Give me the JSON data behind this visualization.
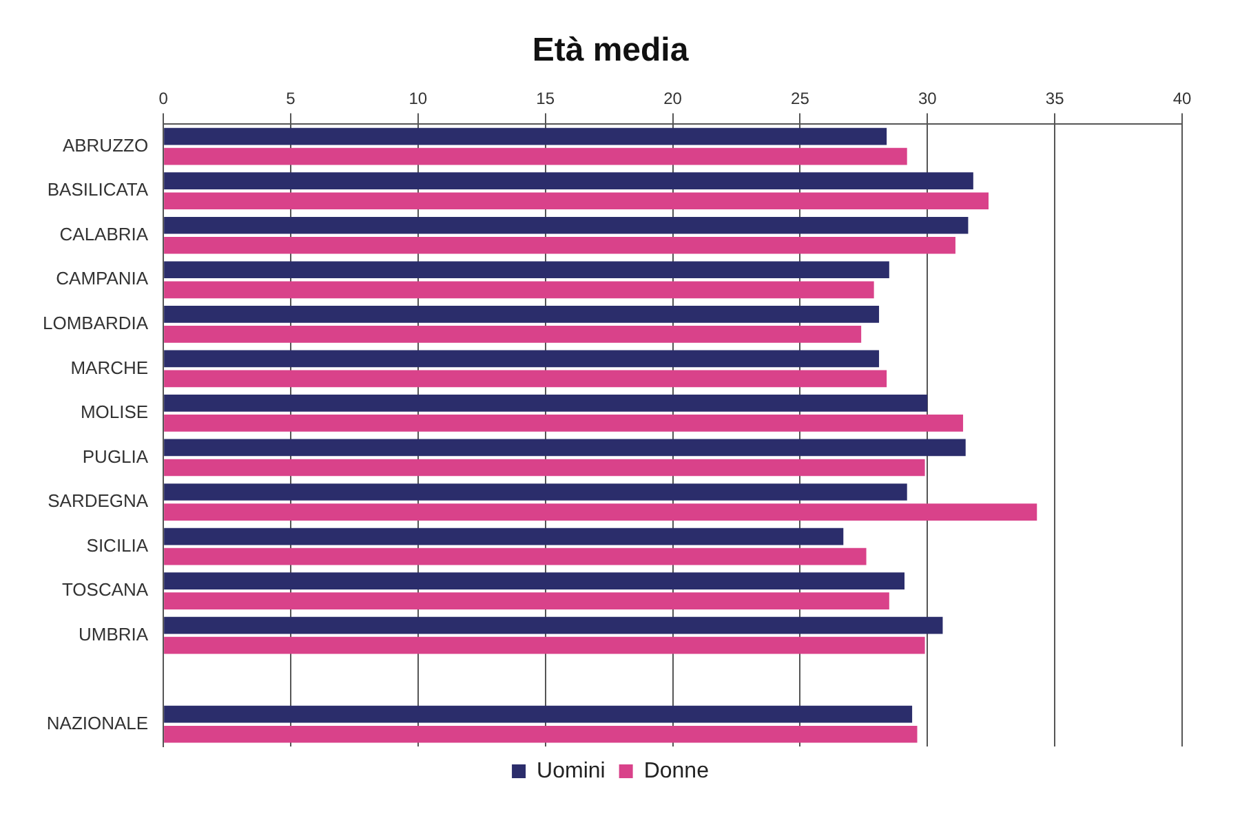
{
  "chart_data": {
    "type": "bar",
    "orientation": "horizontal",
    "title": "Età media",
    "categories": [
      "ABRUZZO",
      "BASILICATA",
      "CALABRIA",
      "CAMPANIA",
      "LOMBARDIA",
      "MARCHE",
      "MOLISE",
      "PUGLIA",
      "SARDEGNA",
      "SICILIA",
      "TOSCANA",
      "UMBRIA",
      null,
      "NAZIONALE"
    ],
    "series": [
      {
        "name": "Uomini",
        "color": "#2b2d6b",
        "values": [
          28.4,
          31.8,
          31.6,
          28.5,
          28.1,
          28.1,
          30.0,
          31.5,
          29.2,
          26.7,
          29.1,
          30.6,
          null,
          29.4
        ]
      },
      {
        "name": "Donne",
        "color": "#d9428a",
        "values": [
          29.2,
          32.4,
          31.1,
          27.9,
          27.4,
          28.4,
          31.4,
          29.9,
          34.3,
          27.6,
          28.5,
          29.9,
          null,
          29.6
        ]
      }
    ],
    "xlim": [
      0,
      40
    ],
    "xticks": [
      0,
      5,
      10,
      15,
      20,
      25,
      30,
      35,
      40
    ],
    "grid": "x",
    "legend": "bottom"
  }
}
